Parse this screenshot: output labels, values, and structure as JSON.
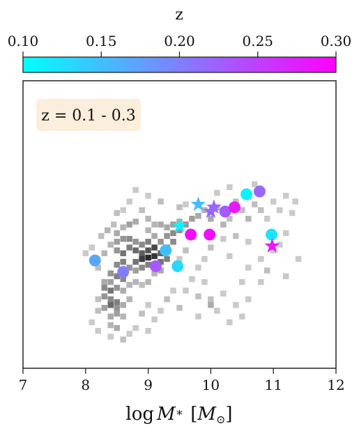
{
  "chart_data": {
    "type": "scatter",
    "annotation": "z = 0.1 - 0.3",
    "xlabel": "log M_* [M_⊙]",
    "xlabel_parts": {
      "log": "log",
      "M": "M",
      "star": "∗",
      "bracket_open": "[",
      "Msun": "M",
      "sun": "⊙",
      "bracket_close": "]"
    },
    "xlim": [
      7,
      12
    ],
    "xticks": [
      7,
      8,
      9,
      10,
      11,
      12
    ],
    "ylim": [
      0,
      1
    ],
    "y_ticks_shown": false,
    "grid": false,
    "colorbar": {
      "label": "z",
      "range": [
        0.1,
        0.3
      ],
      "ticks": [
        "0.10",
        "0.15",
        "0.20",
        "0.25",
        "0.30"
      ],
      "colormap": "cool",
      "color_low": "#00ffff",
      "color_high": "#ff00ff",
      "placement": "top"
    },
    "annotation_box_color": "#fbeedc",
    "points": [
      {
        "x": 8.15,
        "y": 0.375,
        "z": 0.17,
        "marker": "circle"
      },
      {
        "x": 8.6,
        "y": 0.335,
        "z": 0.2,
        "marker": "circle"
      },
      {
        "x": 9.12,
        "y": 0.355,
        "z": 0.23,
        "marker": "circle"
      },
      {
        "x": 9.28,
        "y": 0.41,
        "z": 0.15,
        "marker": "circle"
      },
      {
        "x": 9.47,
        "y": 0.355,
        "z": 0.13,
        "marker": "circle"
      },
      {
        "x": 9.68,
        "y": 0.465,
        "z": 0.29,
        "marker": "circle"
      },
      {
        "x": 9.98,
        "y": 0.465,
        "z": 0.29,
        "marker": "circle"
      },
      {
        "x": 10.23,
        "y": 0.545,
        "z": 0.23,
        "marker": "circle"
      },
      {
        "x": 10.38,
        "y": 0.56,
        "z": 0.28,
        "marker": "circle"
      },
      {
        "x": 10.57,
        "y": 0.605,
        "z": 0.11,
        "marker": "circle"
      },
      {
        "x": 10.78,
        "y": 0.615,
        "z": 0.22,
        "marker": "circle"
      },
      {
        "x": 10.97,
        "y": 0.465,
        "z": 0.12,
        "marker": "circle"
      },
      {
        "x": 9.5,
        "y": 0.495,
        "z": 0.11,
        "marker": "star"
      },
      {
        "x": 9.8,
        "y": 0.57,
        "z": 0.15,
        "marker": "star"
      },
      {
        "x": 10.0,
        "y": 0.545,
        "z": 0.22,
        "marker": "star"
      },
      {
        "x": 10.05,
        "y": 0.56,
        "z": 0.22,
        "marker": "star"
      },
      {
        "x": 10.98,
        "y": 0.425,
        "z": 0.28,
        "marker": "star"
      }
    ],
    "background_density": {
      "description": "grey 2D histogram of the underlying galaxy sample",
      "cells": [
        [
          8.25,
          0.46,
          0.25
        ],
        [
          8.35,
          0.48,
          0.3
        ],
        [
          8.45,
          0.5,
          0.25
        ],
        [
          8.5,
          0.47,
          0.35
        ],
        [
          8.6,
          0.49,
          0.3
        ],
        [
          8.7,
          0.5,
          0.4
        ],
        [
          8.8,
          0.51,
          0.35
        ],
        [
          8.4,
          0.43,
          0.3
        ],
        [
          8.5,
          0.44,
          0.4
        ],
        [
          8.6,
          0.45,
          0.45
        ],
        [
          8.7,
          0.45,
          0.5
        ],
        [
          8.8,
          0.44,
          0.45
        ],
        [
          8.9,
          0.43,
          0.5
        ],
        [
          9.0,
          0.44,
          0.55
        ],
        [
          8.5,
          0.41,
          0.45
        ],
        [
          8.6,
          0.4,
          0.6
        ],
        [
          8.7,
          0.42,
          0.55
        ],
        [
          8.8,
          0.41,
          0.65
        ],
        [
          8.9,
          0.4,
          0.7
        ],
        [
          9.0,
          0.41,
          0.75
        ],
        [
          9.1,
          0.42,
          0.8
        ],
        [
          8.9,
          0.38,
          0.85
        ],
        [
          9.0,
          0.385,
          0.95
        ],
        [
          9.1,
          0.39,
          0.9
        ],
        [
          9.2,
          0.4,
          0.7
        ],
        [
          9.2,
          0.37,
          0.6
        ],
        [
          9.3,
          0.38,
          0.55
        ],
        [
          8.8,
          0.37,
          0.6
        ],
        [
          8.6,
          0.37,
          0.55
        ],
        [
          8.5,
          0.36,
          0.5
        ],
        [
          8.7,
          0.35,
          0.45
        ],
        [
          8.8,
          0.34,
          0.4
        ],
        [
          8.9,
          0.35,
          0.5
        ],
        [
          9.0,
          0.36,
          0.55
        ],
        [
          8.4,
          0.33,
          0.45
        ],
        [
          8.5,
          0.32,
          0.55
        ],
        [
          8.6,
          0.31,
          0.5
        ],
        [
          8.4,
          0.3,
          0.4
        ],
        [
          8.3,
          0.3,
          0.35
        ],
        [
          8.3,
          0.28,
          0.5
        ],
        [
          8.4,
          0.27,
          0.6
        ],
        [
          8.5,
          0.28,
          0.45
        ],
        [
          8.6,
          0.27,
          0.35
        ],
        [
          8.3,
          0.25,
          0.45
        ],
        [
          8.4,
          0.24,
          0.5
        ],
        [
          8.5,
          0.23,
          0.55
        ],
        [
          8.4,
          0.22,
          0.65
        ],
        [
          8.5,
          0.21,
          0.45
        ],
        [
          8.3,
          0.21,
          0.4
        ],
        [
          8.6,
          0.22,
          0.35
        ],
        [
          8.5,
          0.19,
          0.4
        ],
        [
          8.4,
          0.18,
          0.35
        ],
        [
          8.6,
          0.18,
          0.3
        ],
        [
          8.4,
          0.15,
          0.3
        ],
        [
          8.5,
          0.14,
          0.35
        ],
        [
          8.2,
          0.2,
          0.25
        ],
        [
          8.2,
          0.24,
          0.25
        ],
        [
          8.7,
          0.24,
          0.3
        ],
        [
          8.7,
          0.29,
          0.3
        ],
        [
          8.8,
          0.3,
          0.3
        ],
        [
          8.9,
          0.29,
          0.25
        ],
        [
          9.0,
          0.3,
          0.3
        ],
        [
          9.1,
          0.33,
          0.3
        ],
        [
          9.2,
          0.34,
          0.35
        ],
        [
          9.2,
          0.44,
          0.45
        ],
        [
          9.3,
          0.46,
          0.45
        ],
        [
          9.4,
          0.47,
          0.5
        ],
        [
          9.5,
          0.48,
          0.45
        ],
        [
          9.3,
          0.42,
          0.55
        ],
        [
          9.4,
          0.44,
          0.5
        ],
        [
          9.6,
          0.5,
          0.45
        ],
        [
          9.7,
          0.52,
          0.4
        ],
        [
          9.4,
          0.5,
          0.4
        ],
        [
          9.5,
          0.51,
          0.35
        ],
        [
          9.1,
          0.46,
          0.35
        ],
        [
          9.0,
          0.48,
          0.3
        ],
        [
          9.8,
          0.53,
          0.35
        ],
        [
          9.9,
          0.55,
          0.3
        ],
        [
          10.0,
          0.52,
          0.35
        ],
        [
          10.1,
          0.56,
          0.3
        ],
        [
          10.2,
          0.5,
          0.3
        ],
        [
          10.3,
          0.52,
          0.25
        ],
        [
          10.4,
          0.58,
          0.25
        ],
        [
          10.5,
          0.55,
          0.25
        ],
        [
          10.6,
          0.52,
          0.3
        ],
        [
          10.7,
          0.57,
          0.25
        ],
        [
          10.8,
          0.55,
          0.25
        ],
        [
          10.9,
          0.52,
          0.2
        ],
        [
          11.0,
          0.58,
          0.2
        ],
        [
          11.1,
          0.55,
          0.2
        ],
        [
          11.3,
          0.54,
          0.2
        ],
        [
          11.2,
          0.47,
          0.2
        ],
        [
          11.1,
          0.43,
          0.2
        ],
        [
          11.0,
          0.41,
          0.2
        ],
        [
          10.8,
          0.38,
          0.2
        ],
        [
          10.6,
          0.35,
          0.2
        ],
        [
          10.3,
          0.39,
          0.2
        ],
        [
          10.2,
          0.45,
          0.2
        ],
        [
          10.0,
          0.42,
          0.25
        ],
        [
          9.9,
          0.38,
          0.2
        ],
        [
          9.8,
          0.35,
          0.2
        ],
        [
          9.6,
          0.41,
          0.25
        ],
        [
          9.5,
          0.38,
          0.2
        ],
        [
          9.7,
          0.31,
          0.2
        ],
        [
          9.4,
          0.27,
          0.2
        ],
        [
          9.3,
          0.24,
          0.25
        ],
        [
          9.2,
          0.2,
          0.2
        ],
        [
          9.0,
          0.22,
          0.2
        ],
        [
          8.9,
          0.19,
          0.25
        ],
        [
          9.1,
          0.17,
          0.2
        ],
        [
          9.0,
          0.13,
          0.2
        ],
        [
          8.8,
          0.14,
          0.2
        ],
        [
          8.7,
          0.12,
          0.2
        ],
        [
          8.6,
          0.1,
          0.25
        ],
        [
          8.4,
          0.11,
          0.2
        ],
        [
          8.2,
          0.13,
          0.2
        ],
        [
          8.1,
          0.16,
          0.2
        ],
        [
          8.2,
          0.35,
          0.25
        ],
        [
          8.0,
          0.4,
          0.2
        ],
        [
          8.3,
          0.4,
          0.3
        ],
        [
          8.1,
          0.42,
          0.2
        ],
        [
          8.5,
          0.54,
          0.25
        ],
        [
          8.6,
          0.55,
          0.2
        ],
        [
          8.7,
          0.58,
          0.2
        ],
        [
          8.9,
          0.55,
          0.25
        ],
        [
          9.0,
          0.52,
          0.3
        ],
        [
          9.1,
          0.5,
          0.3
        ],
        [
          9.2,
          0.5,
          0.35
        ],
        [
          9.3,
          0.49,
          0.35
        ],
        [
          10.0,
          0.24,
          0.25
        ],
        [
          10.0,
          0.22,
          0.35
        ],
        [
          9.8,
          0.18,
          0.2
        ],
        [
          9.9,
          0.3,
          0.2
        ],
        [
          10.2,
          0.26,
          0.2
        ],
        [
          10.4,
          0.22,
          0.2
        ],
        [
          10.5,
          0.3,
          0.2
        ],
        [
          10.6,
          0.24,
          0.2
        ],
        [
          10.8,
          0.3,
          0.2
        ],
        [
          10.9,
          0.34,
          0.25
        ],
        [
          11.2,
          0.32,
          0.2
        ],
        [
          11.4,
          0.38,
          0.2
        ],
        [
          10.4,
          0.46,
          0.25
        ],
        [
          10.6,
          0.44,
          0.2
        ],
        [
          9.5,
          0.21,
          0.25
        ],
        [
          9.6,
          0.27,
          0.2
        ],
        [
          9.8,
          0.25,
          0.25
        ],
        [
          10.1,
          0.2,
          0.2
        ],
        [
          10.3,
          0.16,
          0.2
        ],
        [
          10.5,
          0.18,
          0.2
        ],
        [
          8.8,
          0.62,
          0.2
        ],
        [
          9.0,
          0.6,
          0.2
        ],
        [
          9.2,
          0.58,
          0.25
        ],
        [
          9.5,
          0.56,
          0.25
        ],
        [
          9.6,
          0.57,
          0.2
        ],
        [
          10.1,
          0.61,
          0.2
        ],
        [
          10.3,
          0.63,
          0.2
        ],
        [
          10.7,
          0.64,
          0.2
        ],
        [
          11.2,
          0.6,
          0.2
        ],
        [
          11.35,
          0.58,
          0.2
        ]
      ]
    }
  }
}
